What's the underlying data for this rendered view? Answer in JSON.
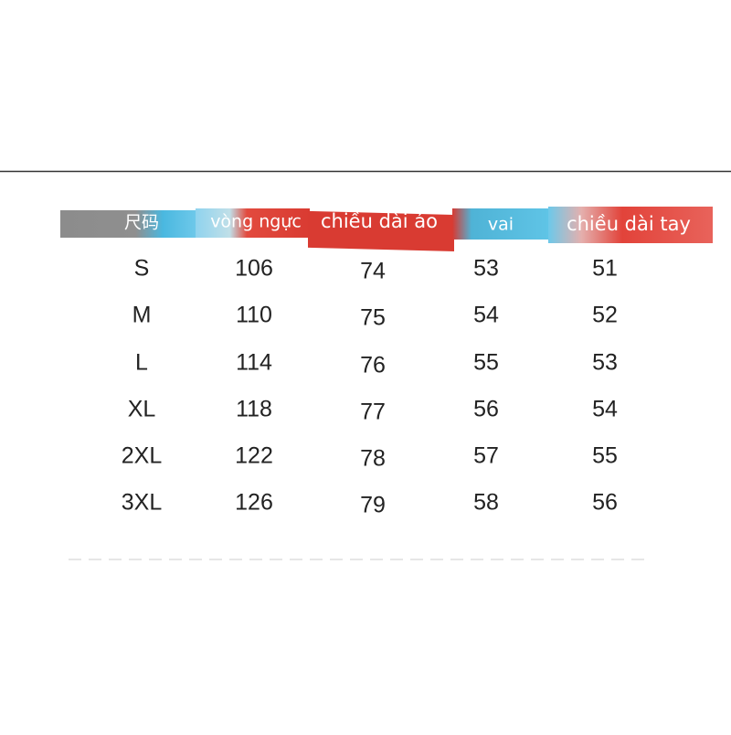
{
  "table": {
    "header": [
      "尺码",
      "vòng ngực",
      "chiều dài áo",
      "vai",
      "chiều dài tay"
    ],
    "rows": [
      [
        "S",
        106,
        74,
        53,
        51
      ],
      [
        "M",
        110,
        75,
        54,
        52
      ],
      [
        "L",
        114,
        76,
        55,
        53
      ],
      [
        "XL",
        118,
        77,
        56,
        54
      ],
      [
        "2XL",
        122,
        78,
        57,
        55
      ],
      [
        "3XL",
        126,
        79,
        58,
        56
      ]
    ]
  }
}
